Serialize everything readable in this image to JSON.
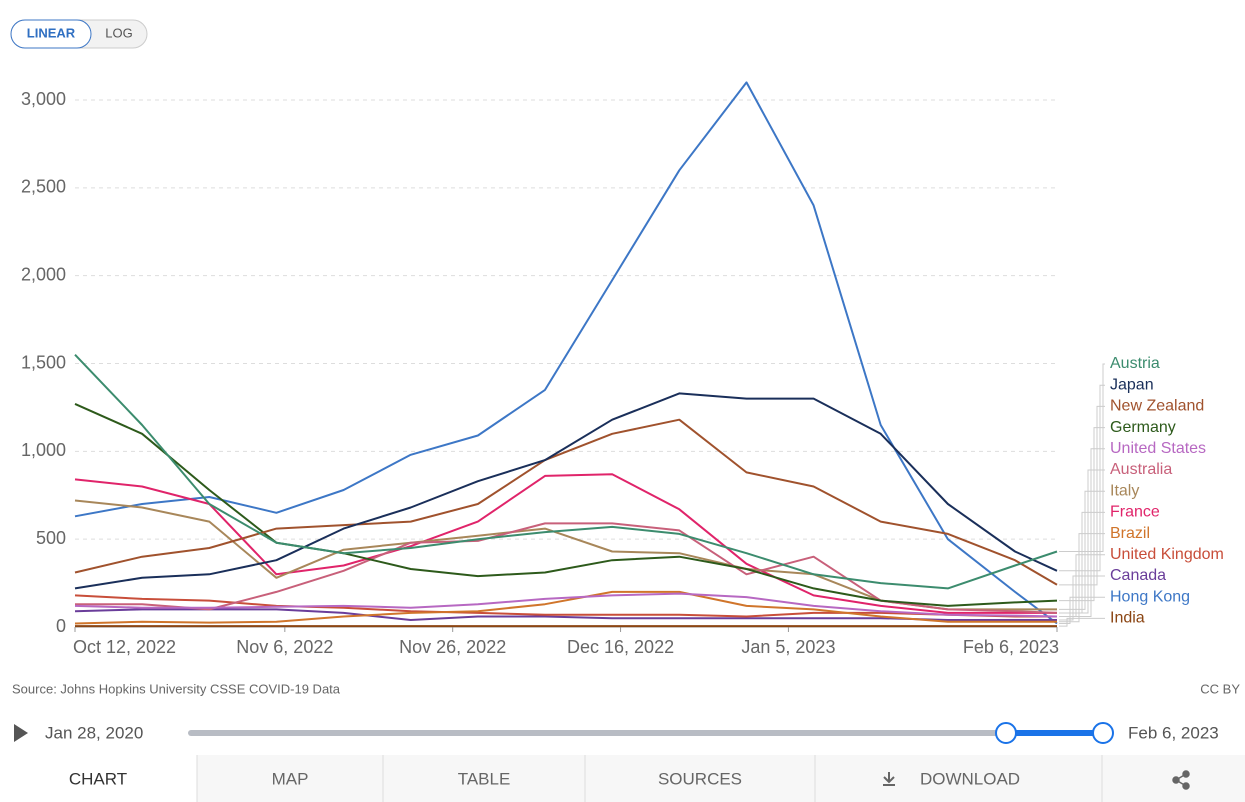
{
  "controls": {
    "scale_options": [
      "LINEAR",
      "LOG"
    ]
  },
  "chart_data": {
    "type": "line",
    "x": [
      "2022-10-12",
      "2022-10-20",
      "2022-10-28",
      "2022-11-05",
      "2022-11-13",
      "2022-11-21",
      "2022-11-29",
      "2022-12-07",
      "2022-12-15",
      "2022-12-23",
      "2022-12-31",
      "2023-01-08",
      "2023-01-16",
      "2023-01-24",
      "2023-02-01",
      "2023-02-06"
    ],
    "xlim": [
      "2022-10-12",
      "2023-02-06"
    ],
    "xticks": [
      {
        "value": "2022-10-12",
        "label": "Oct 12, 2022"
      },
      {
        "value": "2022-11-06",
        "label": "Nov 6, 2022"
      },
      {
        "value": "2022-11-26",
        "label": "Nov 26, 2022"
      },
      {
        "value": "2022-12-16",
        "label": "Dec 16, 2022"
      },
      {
        "value": "2023-01-05",
        "label": "Jan 5, 2023"
      },
      {
        "value": "2023-02-06",
        "label": "Feb 6, 2023"
      }
    ],
    "ylim": [
      0,
      3000
    ],
    "yticks": [
      0,
      500,
      {
        "value": 1000,
        "label": "1,000"
      },
      {
        "value": 1500,
        "label": "1,500"
      },
      {
        "value": 2000,
        "label": "2,000"
      },
      {
        "value": 2500,
        "label": "2,500"
      },
      {
        "value": 3000,
        "label": "3,000"
      }
    ],
    "grid": true,
    "series": [
      {
        "name": "Austria",
        "color": "#3c8c6e",
        "values": [
          1550,
          1150,
          700,
          480,
          420,
          450,
          500,
          540,
          570,
          530,
          420,
          300,
          250,
          220,
          350,
          430
        ]
      },
      {
        "name": "Japan",
        "color": "#1a2f5a",
        "values": [
          220,
          280,
          300,
          380,
          560,
          680,
          830,
          950,
          1180,
          1330,
          1300,
          1300,
          1100,
          700,
          430,
          320
        ]
      },
      {
        "name": "New Zealand",
        "color": "#a0522d",
        "values": [
          310,
          400,
          450,
          560,
          580,
          600,
          700,
          950,
          1100,
          1180,
          880,
          800,
          600,
          530,
          380,
          240
        ]
      },
      {
        "name": "Germany",
        "color": "#2d5a1b",
        "values": [
          1270,
          1100,
          780,
          480,
          420,
          330,
          290,
          310,
          380,
          400,
          330,
          220,
          150,
          120,
          140,
          150
        ]
      },
      {
        "name": "United States",
        "color": "#b768c2",
        "values": [
          120,
          110,
          110,
          115,
          120,
          110,
          130,
          160,
          180,
          190,
          170,
          120,
          90,
          70,
          65,
          60
        ]
      },
      {
        "name": "Australia",
        "color": "#c8607a",
        "values": [
          130,
          130,
          100,
          200,
          320,
          480,
          490,
          590,
          590,
          550,
          300,
          400,
          150,
          100,
          90,
          80
        ]
      },
      {
        "name": "Italy",
        "color": "#a8875a",
        "values": [
          720,
          680,
          600,
          280,
          440,
          480,
          520,
          560,
          430,
          420,
          330,
          300,
          150,
          100,
          100,
          100
        ]
      },
      {
        "name": "France",
        "color": "#e0246a",
        "values": [
          840,
          800,
          700,
          300,
          350,
          460,
          600,
          860,
          870,
          670,
          360,
          180,
          120,
          80,
          80,
          80
        ]
      },
      {
        "name": "Brazil",
        "color": "#d0752b",
        "values": [
          20,
          30,
          25,
          30,
          60,
          80,
          90,
          130,
          200,
          200,
          120,
          100,
          60,
          30,
          30,
          30
        ]
      },
      {
        "name": "United Kingdom",
        "color": "#c84e3a",
        "values": [
          180,
          160,
          150,
          120,
          110,
          90,
          80,
          70,
          70,
          70,
          60,
          80,
          80,
          70,
          60,
          60
        ]
      },
      {
        "name": "Canada",
        "color": "#6a3d9a",
        "values": [
          90,
          100,
          100,
          100,
          80,
          40,
          60,
          60,
          50,
          50,
          50,
          50,
          50,
          40,
          40,
          40
        ]
      },
      {
        "name": "Hong Kong",
        "color": "#3d77c6",
        "values": [
          630,
          700,
          740,
          650,
          780,
          980,
          1090,
          1350,
          1975,
          2600,
          3100,
          2400,
          1150,
          500,
          200,
          20
        ]
      },
      {
        "name": "India",
        "color": "#8b4513",
        "values": [
          5,
          5,
          5,
          5,
          5,
          5,
          5,
          5,
          5,
          5,
          5,
          5,
          5,
          5,
          5,
          5
        ]
      }
    ]
  },
  "footer": {
    "source": "Source: Johns Hopkins University CSSE COVID-19 Data",
    "license": "CC BY"
  },
  "timeline": {
    "start": "Jan 28, 2020",
    "end": "Feb 6, 2023"
  },
  "tabs": [
    "CHART",
    "MAP",
    "TABLE",
    "SOURCES",
    "DOWNLOAD"
  ]
}
